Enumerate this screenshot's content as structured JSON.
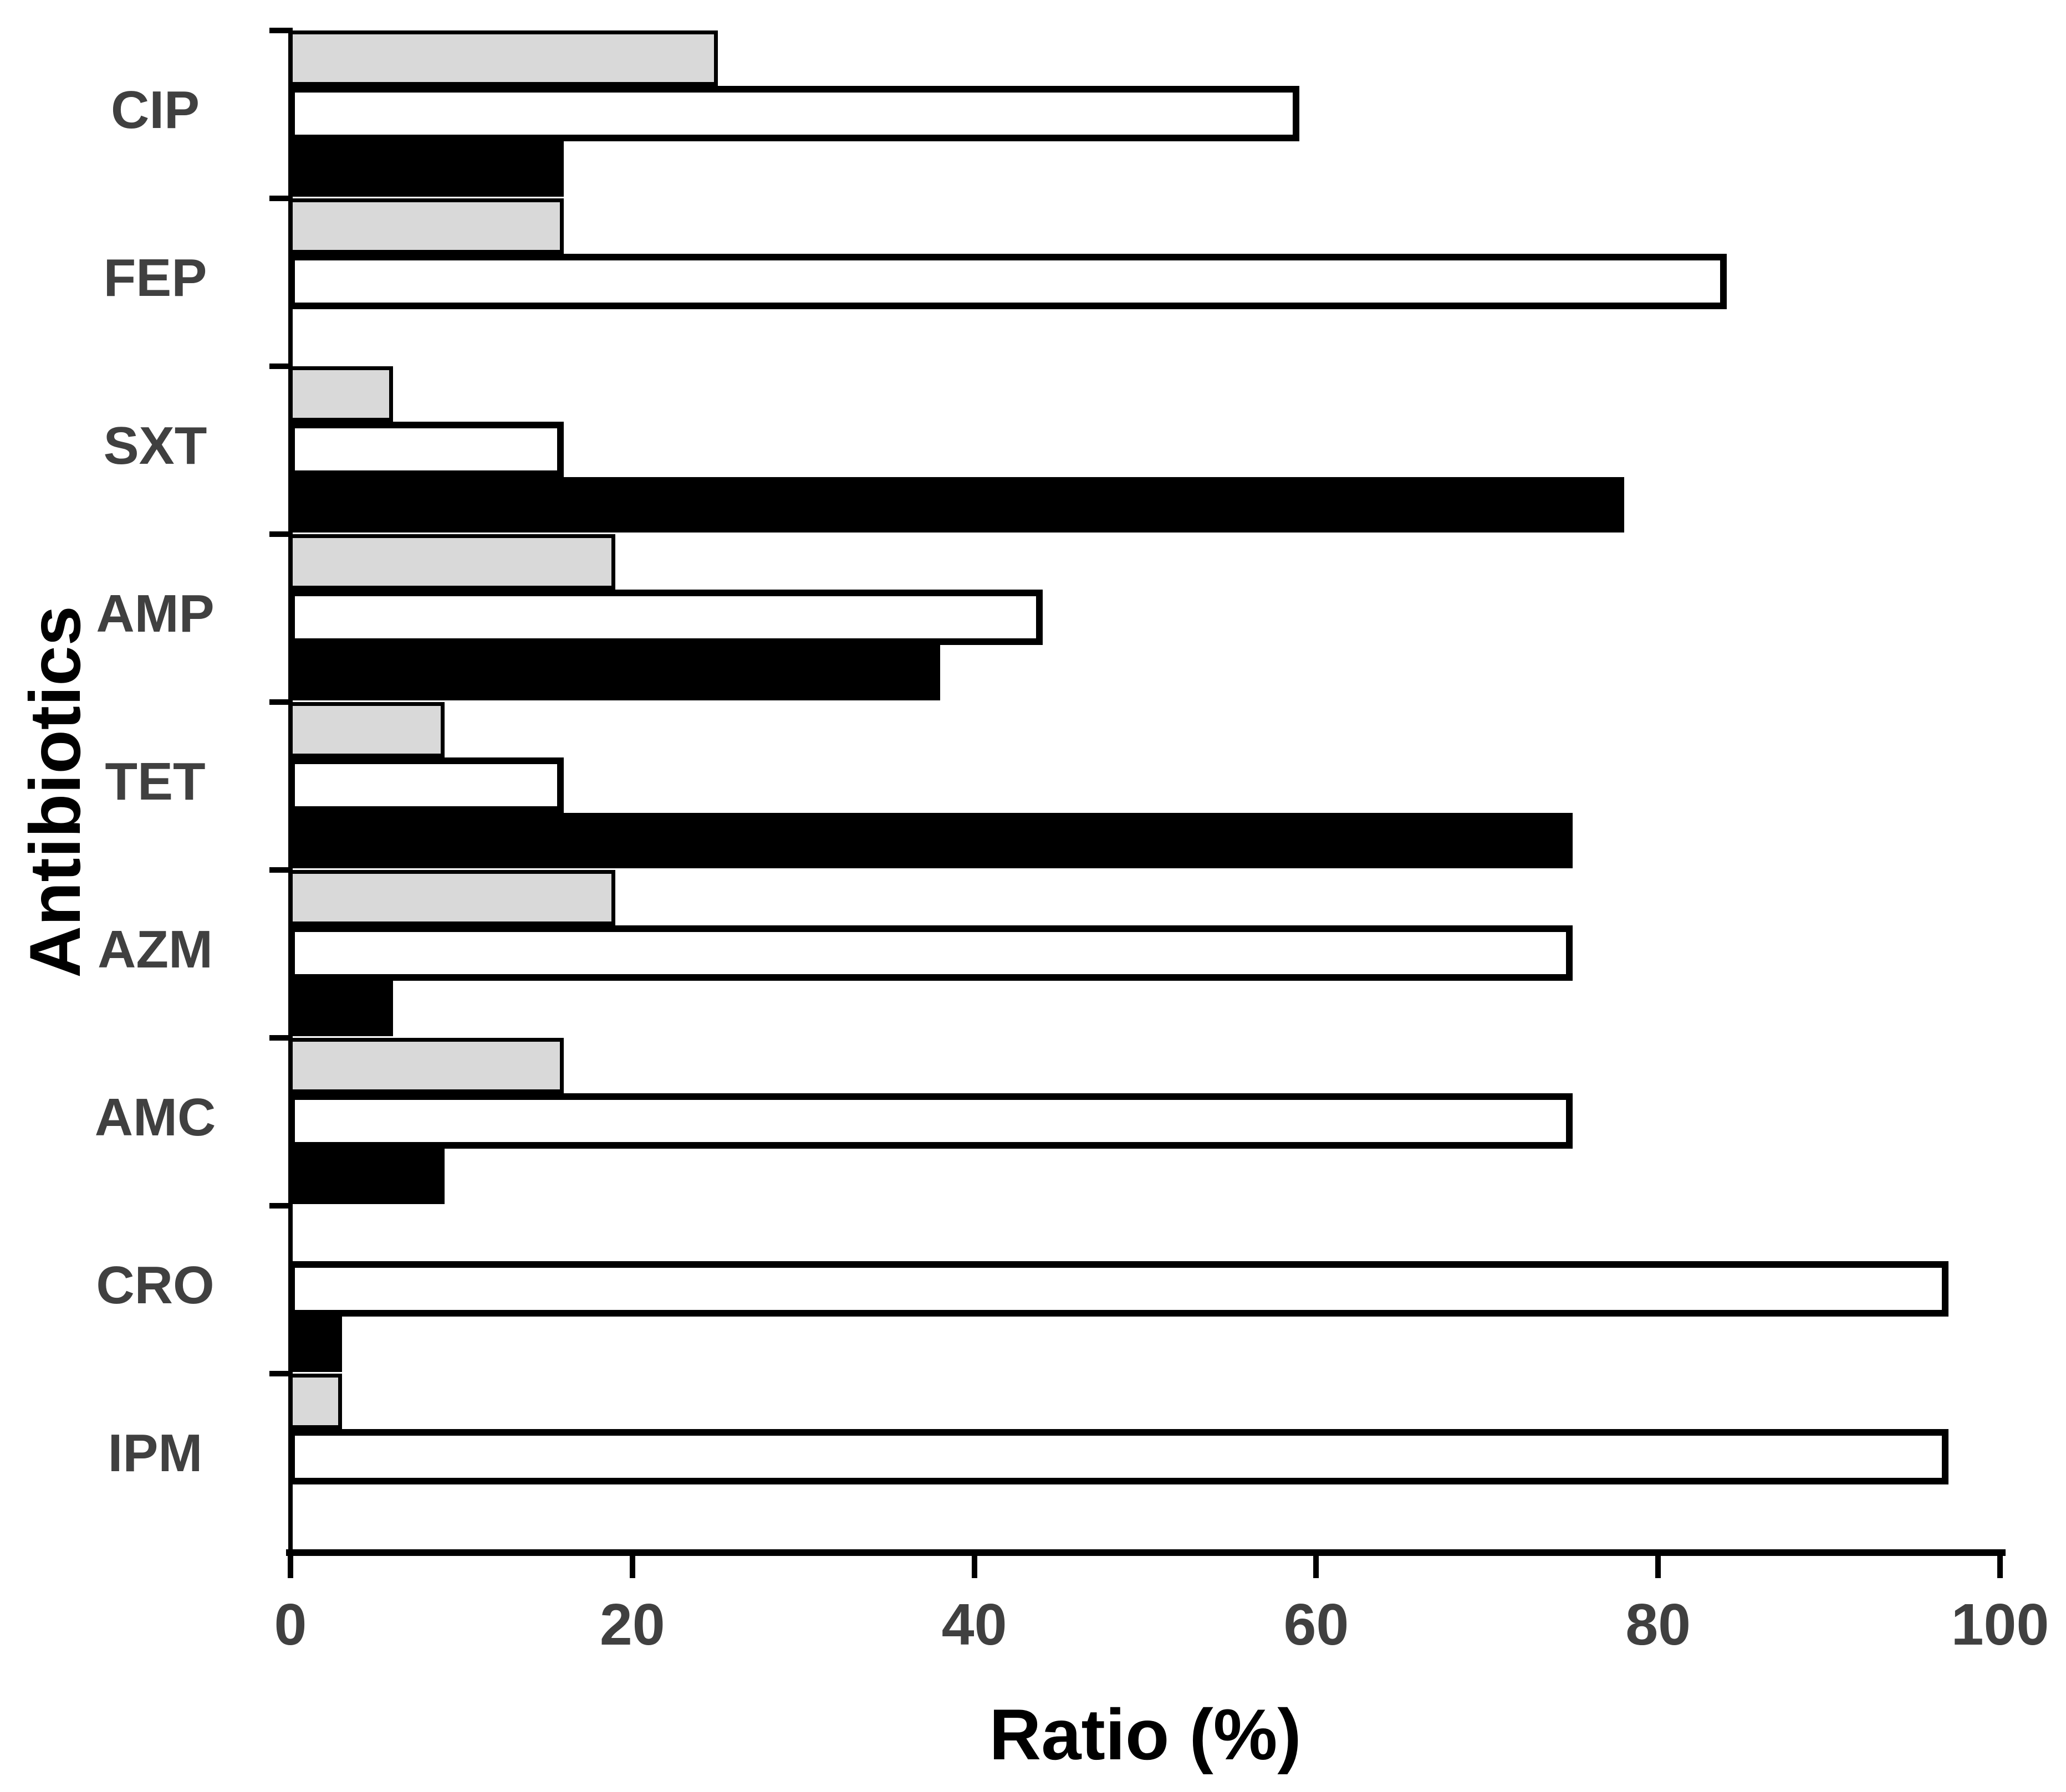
{
  "figure": {
    "background": "#ffffff",
    "axis_color": "#000000",
    "tick_label_color": "#404040",
    "category_label_color": "#404040"
  },
  "chart_data": {
    "type": "bar",
    "orientation": "horizontal",
    "title": "",
    "xlabel": "Ratio (%)",
    "ylabel": "Antibiotics",
    "xlim": [
      0,
      100
    ],
    "x_ticks": [
      0,
      20,
      40,
      60,
      80,
      100
    ],
    "grid": false,
    "legend_position": "none",
    "categories": [
      "CIP",
      "FEP",
      "SXT",
      "AMP",
      "TET",
      "AZM",
      "AMC",
      "CRO",
      "IPM"
    ],
    "series": [
      {
        "name": "gray-bars",
        "color": "#d9d9d9",
        "edge_color": "#000000",
        "values": [
          25,
          16,
          6,
          19,
          9,
          19,
          16,
          0,
          3
        ]
      },
      {
        "name": "white-bars",
        "color": "#ffffff",
        "edge_color": "#000000",
        "values": [
          59,
          84,
          16,
          44,
          16,
          75,
          75,
          97,
          97
        ]
      },
      {
        "name": "black-bars",
        "color": "#000000",
        "edge_color": "#000000",
        "values": [
          16,
          0,
          78,
          38,
          75,
          6,
          9,
          3,
          0
        ]
      }
    ]
  }
}
